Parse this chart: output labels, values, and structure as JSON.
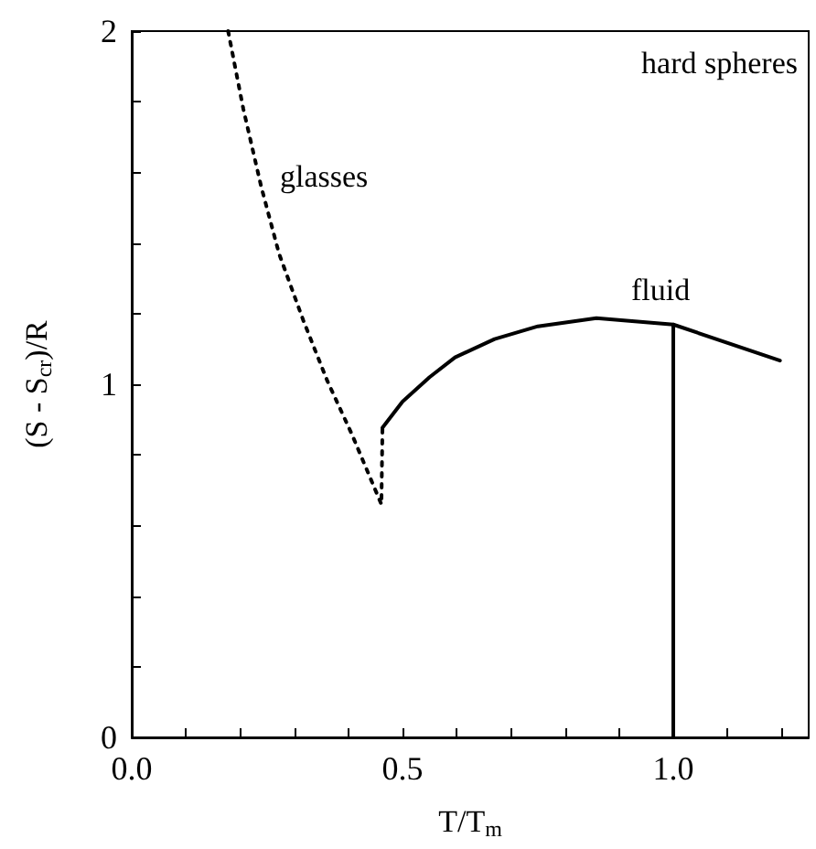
{
  "chart_data": {
    "type": "line",
    "xlabel": "T/T$_{m}$",
    "ylabel": "(S - S$_{cr}$)/R",
    "xlim": [
      0,
      1.25
    ],
    "ylim": [
      0,
      2
    ],
    "xticks": [
      {
        "value": 0,
        "label": "0.0"
      },
      {
        "value": 0.1,
        "label": null
      },
      {
        "value": 0.2,
        "label": null
      },
      {
        "value": 0.3,
        "label": null
      },
      {
        "value": 0.4,
        "label": null
      },
      {
        "value": 0.5,
        "label": "0.5"
      },
      {
        "value": 0.6,
        "label": null
      },
      {
        "value": 0.7,
        "label": null
      },
      {
        "value": 0.8,
        "label": null
      },
      {
        "value": 0.9,
        "label": null
      },
      {
        "value": 1,
        "label": "1.0"
      },
      {
        "value": 1.1,
        "label": null
      },
      {
        "value": 1.2,
        "label": null
      }
    ],
    "yticks": [
      0,
      {
        "value": 0.2,
        "label": null
      },
      {
        "value": 0.4,
        "label": null
      },
      {
        "value": 0.6,
        "label": null
      },
      {
        "value": 0.8,
        "label": null
      },
      1,
      {
        "value": 1.2,
        "label": null
      },
      {
        "value": 1.4,
        "label": null
      },
      {
        "value": 1.6,
        "label": null
      },
      {
        "value": 1.8,
        "label": null
      },
      2
    ],
    "grid": false,
    "marker": "none",
    "series": [
      {
        "color": "#000000",
        "line_style": "dotted",
        "x": [
          0.178,
          0.206,
          0.239,
          0.272,
          0.317,
          0.361,
          0.406,
          0.461,
          0.463
        ],
        "values": [
          2,
          1.78,
          1.56,
          1.37,
          1.18,
          1.01,
          0.86,
          0.66,
          0.877
        ]
      },
      {
        "color": "#000000",
        "line_style": "solid",
        "x": [
          0.463,
          0.5,
          0.55,
          0.597,
          0.67,
          0.75,
          0.858,
          1.0,
          1.197
        ],
        "values": [
          0.877,
          0.951,
          1.02,
          1.076,
          1.128,
          1.164,
          1.187,
          1.169,
          1.067
        ]
      },
      {
        "color": "#000000",
        "line_style": "solid",
        "x": [
          1.0,
          1.0
        ],
        "values": [
          0,
          1.169
        ]
      }
    ],
    "annotations": [
      "glasses",
      "fluid",
      "hard spheres"
    ]
  }
}
